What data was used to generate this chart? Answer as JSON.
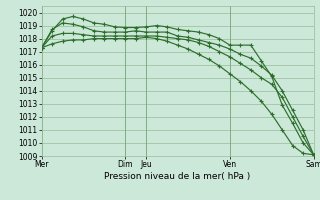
{
  "bg_color": "#cce8d8",
  "grid_color": "#99bb99",
  "line_color": "#2d6e2d",
  "xlabel": "Pression niveau de la mer( hPa )",
  "ylim": [
    1009,
    1020.5
  ],
  "yticks": [
    1009,
    1010,
    1011,
    1012,
    1013,
    1014,
    1015,
    1016,
    1017,
    1018,
    1019,
    1020
  ],
  "xtick_labels": [
    "Mer",
    "Dim",
    "Jeu",
    "Ven",
    "Sam"
  ],
  "xtick_positions": [
    0,
    8,
    10,
    18,
    26
  ],
  "vline_positions": [
    0,
    8,
    10,
    18,
    26
  ],
  "series": [
    [
      1017.3,
      1018.6,
      1019.5,
      1019.7,
      1019.5,
      1019.2,
      1019.1,
      1018.9,
      1018.85,
      1018.85,
      1018.9,
      1019.0,
      1018.9,
      1018.7,
      1018.6,
      1018.5,
      1018.3,
      1018.0,
      1017.5,
      1017.5,
      1017.5,
      1016.3,
      1015.1,
      1012.9,
      1011.5,
      1010.0,
      1009.1
    ],
    [
      1017.3,
      1018.7,
      1019.2,
      1019.1,
      1018.9,
      1018.6,
      1018.5,
      1018.5,
      1018.5,
      1018.6,
      1018.5,
      1018.5,
      1018.5,
      1018.2,
      1018.1,
      1017.9,
      1017.7,
      1017.5,
      1017.2,
      1016.8,
      1016.5,
      1015.9,
      1015.2,
      1014.0,
      1012.5,
      1011.0,
      1009.1
    ],
    [
      1017.3,
      1018.2,
      1018.4,
      1018.4,
      1018.3,
      1018.2,
      1018.2,
      1018.2,
      1018.2,
      1018.2,
      1018.2,
      1018.2,
      1018.1,
      1018.0,
      1017.9,
      1017.7,
      1017.4,
      1017.0,
      1016.6,
      1016.1,
      1015.6,
      1015.0,
      1014.5,
      1013.5,
      1012.0,
      1010.5,
      1009.1
    ],
    [
      1017.3,
      1017.6,
      1017.8,
      1017.9,
      1017.9,
      1018.0,
      1018.0,
      1018.0,
      1018.0,
      1018.0,
      1018.1,
      1018.0,
      1017.8,
      1017.5,
      1017.2,
      1016.8,
      1016.4,
      1015.9,
      1015.3,
      1014.7,
      1014.0,
      1013.2,
      1012.2,
      1011.0,
      1009.8,
      1009.2,
      1009.1
    ]
  ],
  "title_fontsize": 6,
  "tick_fontsize": 5.5,
  "xlabel_fontsize": 6.5
}
